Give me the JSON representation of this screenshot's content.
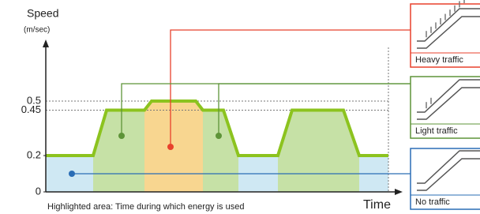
{
  "y_axis": {
    "label": "Speed",
    "unit": "(m/sec)",
    "ticks": [
      0,
      0.2,
      0.45,
      0.5
    ]
  },
  "x_axis_label": "Time",
  "caption": "Highlighted area: Time during which energy is used",
  "profile": [
    0.2,
    0.2,
    0.45,
    0.45,
    0.5,
    0.5,
    0.45,
    0.45,
    0.2,
    0.2,
    0.45,
    0.45,
    0.2,
    0.2
  ],
  "modes": [
    {
      "label": "Heavy traffic",
      "color": "#e8412c"
    },
    {
      "label": "Light traffic",
      "color": "#5e9438"
    },
    {
      "label": "No traffic",
      "color": "#2a6db5"
    }
  ]
}
